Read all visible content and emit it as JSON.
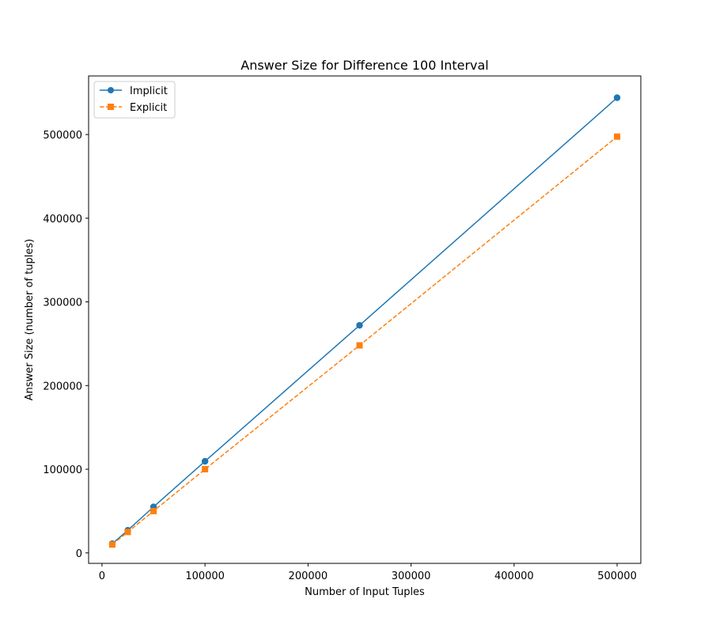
{
  "chart_data": {
    "type": "line",
    "title": "Answer Size for Difference 100 Interval",
    "xlabel": "Number of Input Tuples",
    "ylabel": "Answer Size (number of tuples)",
    "x": [
      10000,
      25000,
      50000,
      100000,
      250000,
      500000
    ],
    "xlim": [
      -13000,
      523000
    ],
    "ylim": [
      -12500,
      570000
    ],
    "xticks": [
      0,
      100000,
      200000,
      300000,
      400000,
      500000
    ],
    "yticks": [
      0,
      100000,
      200000,
      300000,
      400000,
      500000
    ],
    "xtick_labels": [
      "0",
      "100000",
      "200000",
      "300000",
      "400000",
      "500000"
    ],
    "ytick_labels": [
      "0",
      "100000",
      "200000",
      "300000",
      "400000",
      "500000"
    ],
    "grid": false,
    "legend_position": "upper-left",
    "series": [
      {
        "name": "Implicit",
        "values": [
          11000,
          27000,
          55000,
          109500,
          272000,
          544000
        ],
        "color": "#1f77b4",
        "line_style": "solid",
        "marker": "circle"
      },
      {
        "name": "Explicit",
        "values": [
          10000,
          25000,
          50000,
          100000,
          248000,
          497500
        ],
        "color": "#ff7f0e",
        "line_style": "dashed",
        "marker": "square"
      }
    ]
  }
}
